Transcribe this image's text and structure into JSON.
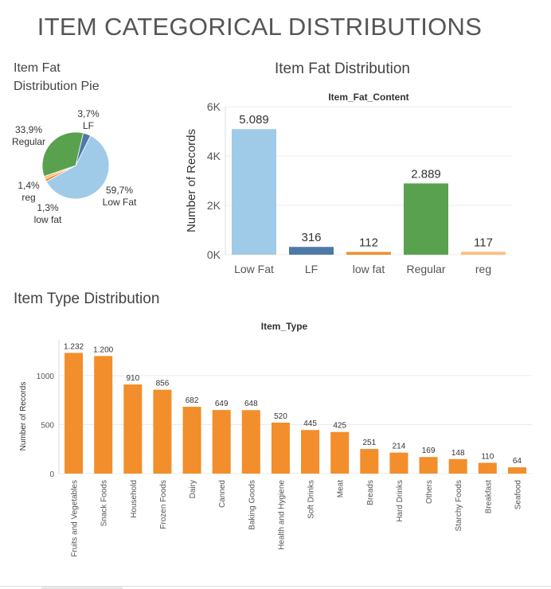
{
  "page": {
    "title": "ITEM CATEGORICAL DISTRIBUTIONS"
  },
  "chart_data": [
    {
      "id": "pie",
      "type": "pie",
      "title": "Item Fat\nDistribution Pie",
      "slices": [
        {
          "label": "LF",
          "percent_label": "3,7%",
          "value": 316,
          "color": "#4e79a7"
        },
        {
          "label": "Low Fat",
          "percent_label": "59,7%",
          "value": 5089,
          "color": "#a0cbe8"
        },
        {
          "label": "low fat",
          "percent_label": "1,3%",
          "value": 112,
          "color": "#f28e2b"
        },
        {
          "label": "reg",
          "percent_label": "1,4%",
          "value": 117,
          "color": "#ffbe7d"
        },
        {
          "label": "Regular",
          "percent_label": "33,9%",
          "value": 2889,
          "color": "#59a14f"
        }
      ]
    },
    {
      "id": "fat",
      "type": "bar",
      "title": "Item Fat Distribution",
      "subtitle": "Item_Fat_Content",
      "ylabel": "Number of Records",
      "ylim": [
        0,
        6000
      ],
      "yticks": [
        {
          "v": 0,
          "label": "0K"
        },
        {
          "v": 2000,
          "label": "2K"
        },
        {
          "v": 4000,
          "label": "4K"
        },
        {
          "v": 6000,
          "label": "6K"
        }
      ],
      "categories": [
        "Low Fat",
        "LF",
        "low fat",
        "Regular",
        "reg"
      ],
      "values": [
        5089,
        316,
        112,
        2889,
        117
      ],
      "value_labels": [
        "5.089",
        "316",
        "112",
        "2.889",
        "117"
      ],
      "colors": [
        "#a0cbe8",
        "#4e79a7",
        "#f28e2b",
        "#59a14f",
        "#ffbe7d"
      ],
      "grid": true
    },
    {
      "id": "type",
      "type": "bar",
      "title": "Item Type Distribution",
      "subtitle": "Item_Type",
      "ylabel": "Number of Records",
      "ylim": [
        0,
        1300
      ],
      "yticks": [
        {
          "v": 0,
          "label": "0"
        },
        {
          "v": 500,
          "label": "500"
        },
        {
          "v": 1000,
          "label": "1000"
        }
      ],
      "categories": [
        "Fruits and Vegetables",
        "Snack Foods",
        "Household",
        "Frozen Foods",
        "Dairy",
        "Canned",
        "Baking Goods",
        "Health and Hygiene",
        "Soft Drinks",
        "Meat",
        "Breads",
        "Hard Drinks",
        "Others",
        "Starchy Foods",
        "Breakfast",
        "Seafood"
      ],
      "values": [
        1232,
        1200,
        910,
        856,
        682,
        649,
        648,
        520,
        445,
        425,
        251,
        214,
        169,
        148,
        110,
        64
      ],
      "value_labels": [
        "1.232",
        "1.200",
        "910",
        "856",
        "682",
        "649",
        "648",
        "520",
        "445",
        "425",
        "251",
        "214",
        "169",
        "148",
        "110",
        "64"
      ],
      "color": "#f28e2b",
      "grid": true
    }
  ]
}
